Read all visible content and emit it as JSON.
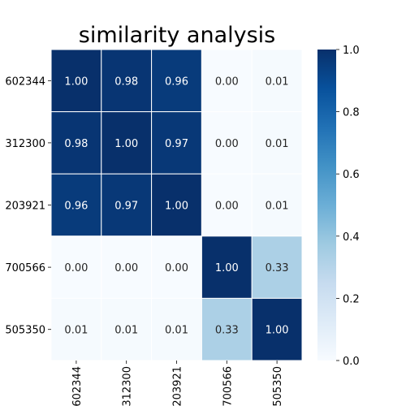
{
  "chart_data": {
    "type": "heatmap",
    "title": "similarity analysis",
    "row_labels": [
      "602344",
      "312300",
      "203921",
      "700566",
      "505350"
    ],
    "col_labels": [
      "602344",
      "312300",
      "203921",
      "700566",
      "505350"
    ],
    "values": [
      [
        1.0,
        0.98,
        0.96,
        0.0,
        0.01
      ],
      [
        0.98,
        1.0,
        0.97,
        0.0,
        0.01
      ],
      [
        0.96,
        0.97,
        1.0,
        0.0,
        0.01
      ],
      [
        0.0,
        0.0,
        0.0,
        1.0,
        0.33
      ],
      [
        0.01,
        0.01,
        0.01,
        0.33,
        1.0
      ]
    ],
    "value_format": "0.00",
    "colorbar": {
      "min": 0.0,
      "max": 1.0,
      "ticks": [
        "0.0",
        "0.2",
        "0.4",
        "0.6",
        "0.8",
        "1.0"
      ],
      "colormap": "Blues"
    },
    "cell_border_color": "#ffffff"
  }
}
